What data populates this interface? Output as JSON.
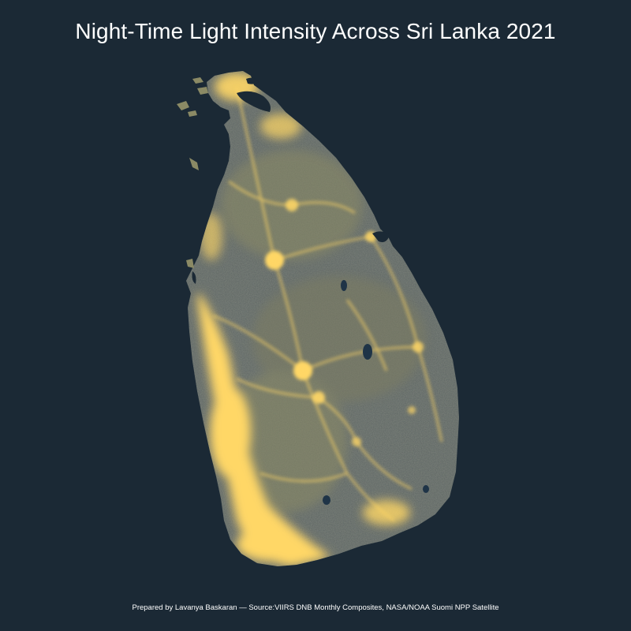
{
  "map": {
    "title": "Night-Time Light Intensity Across Sri Lanka 2021",
    "caption": "Prepared by Lavanya Baskaran — Source:VIIRS DNB Monthly Composites, NASA/NOAA Suomi NPP Satellite",
    "colors": {
      "background": "#1b2935",
      "land_dark": "#5d6563",
      "land_mid": "#8b8a65",
      "light_bright": "#ffd766",
      "water_dark": "#1f3447",
      "text": "#ffffff"
    }
  }
}
